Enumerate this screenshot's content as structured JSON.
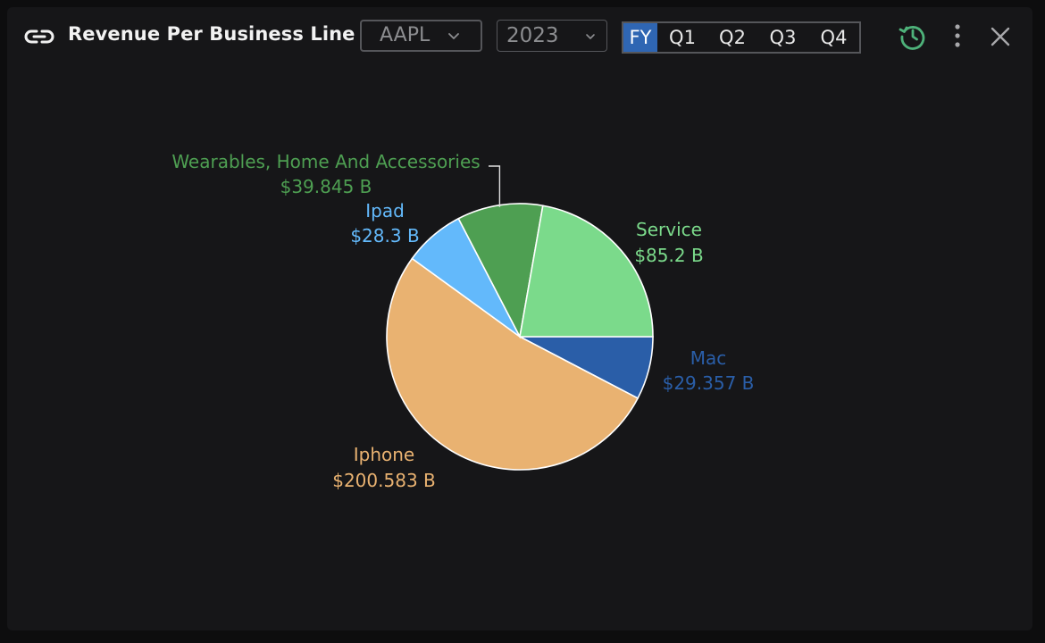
{
  "header": {
    "title": "Revenue Per Business Line",
    "ticker": "AAPL",
    "year": "2023",
    "periods": [
      "FY",
      "Q1",
      "Q2",
      "Q3",
      "Q4"
    ],
    "active_period": "FY",
    "icons": [
      "link-icon",
      "chevron-down-icon",
      "history-icon",
      "more-vertical-icon",
      "close-icon"
    ],
    "history_icon_color": "#4eb27a"
  },
  "chart_data": {
    "type": "pie",
    "unit": "B",
    "slices": [
      {
        "name": "Mac",
        "value": 29.357,
        "label": "$29.357 B",
        "color": "#2a5ea8"
      },
      {
        "name": "Iphone",
        "value": 200.583,
        "label": "$200.583 B",
        "color": "#e9b271"
      },
      {
        "name": "Ipad",
        "value": 28.3,
        "label": "$28.3 B",
        "color": "#63b9fb"
      },
      {
        "name": "Wearables, Home And Accessories",
        "value": 39.845,
        "label": "$39.845 B",
        "color": "#4e9f52"
      },
      {
        "name": "Service",
        "value": 85.2,
        "label": "$85.2 B",
        "color": "#7bda8b"
      }
    ]
  }
}
